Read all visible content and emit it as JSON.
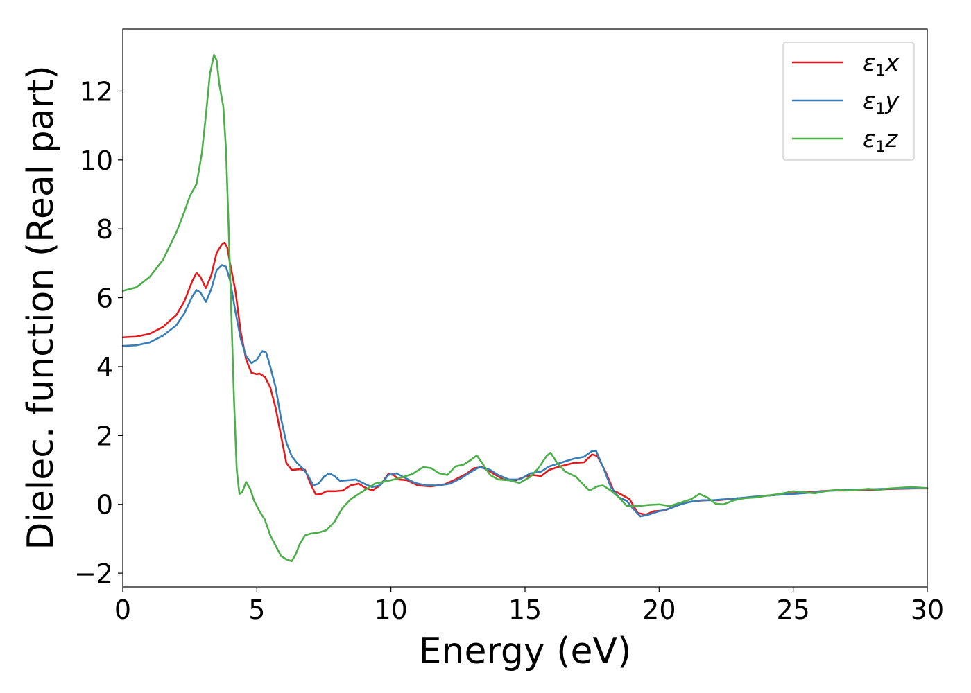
{
  "chart_data": {
    "type": "line",
    "title": "",
    "xlabel": "Energy (eV)",
    "ylabel": "Dielec. function (Real part)",
    "xlim": [
      0,
      30
    ],
    "ylim": [
      -2.4,
      13.8
    ],
    "xticks": [
      0,
      5,
      10,
      15,
      20,
      25,
      30
    ],
    "xtick_labels": [
      "0",
      "5",
      "10",
      "15",
      "20",
      "25",
      "30"
    ],
    "yticks": [
      -2,
      0,
      2,
      4,
      6,
      8,
      10,
      12
    ],
    "ytick_labels": [
      "−2",
      "0",
      "2",
      "4",
      "6",
      "8",
      "10",
      "12"
    ],
    "grid": false,
    "legend_position": "top-right",
    "series": [
      {
        "name": "ε₁x",
        "legend_main": "ε",
        "legend_sub": "1",
        "legend_suffix": "x",
        "color": "#e41a1c",
        "points": [
          [
            0,
            4.85
          ],
          [
            0.5,
            4.87
          ],
          [
            1.0,
            4.95
          ],
          [
            1.5,
            5.15
          ],
          [
            2.0,
            5.5
          ],
          [
            2.3,
            5.9
          ],
          [
            2.6,
            6.5
          ],
          [
            2.75,
            6.72
          ],
          [
            2.9,
            6.6
          ],
          [
            3.1,
            6.28
          ],
          [
            3.3,
            6.65
          ],
          [
            3.5,
            7.3
          ],
          [
            3.7,
            7.55
          ],
          [
            3.8,
            7.6
          ],
          [
            3.9,
            7.45
          ],
          [
            4.0,
            7.0
          ],
          [
            4.2,
            6.2
          ],
          [
            4.4,
            5.0
          ],
          [
            4.6,
            4.2
          ],
          [
            4.8,
            3.82
          ],
          [
            5.0,
            3.78
          ],
          [
            5.1,
            3.8
          ],
          [
            5.3,
            3.7
          ],
          [
            5.5,
            3.4
          ],
          [
            5.7,
            2.8
          ],
          [
            5.9,
            2.0
          ],
          [
            6.1,
            1.2
          ],
          [
            6.3,
            1.0
          ],
          [
            6.6,
            1.02
          ],
          [
            6.8,
            1.0
          ],
          [
            7.0,
            0.6
          ],
          [
            7.2,
            0.28
          ],
          [
            7.4,
            0.3
          ],
          [
            7.6,
            0.38
          ],
          [
            7.9,
            0.38
          ],
          [
            8.2,
            0.4
          ],
          [
            8.5,
            0.55
          ],
          [
            8.8,
            0.6
          ],
          [
            9.0,
            0.5
          ],
          [
            9.3,
            0.4
          ],
          [
            9.6,
            0.55
          ],
          [
            9.9,
            0.88
          ],
          [
            10.1,
            0.85
          ],
          [
            10.3,
            0.72
          ],
          [
            10.6,
            0.7
          ],
          [
            11.0,
            0.55
          ],
          [
            11.5,
            0.52
          ],
          [
            12.0,
            0.58
          ],
          [
            12.4,
            0.72
          ],
          [
            12.8,
            0.88
          ],
          [
            13.1,
            1.05
          ],
          [
            13.4,
            1.08
          ],
          [
            13.8,
            0.9
          ],
          [
            14.2,
            0.72
          ],
          [
            14.6,
            0.68
          ],
          [
            15.0,
            0.8
          ],
          [
            15.3,
            0.85
          ],
          [
            15.6,
            0.82
          ],
          [
            15.9,
            1.0
          ],
          [
            16.3,
            1.1
          ],
          [
            16.8,
            1.2
          ],
          [
            17.2,
            1.22
          ],
          [
            17.5,
            1.45
          ],
          [
            17.7,
            1.4
          ],
          [
            18.0,
            0.95
          ],
          [
            18.3,
            0.4
          ],
          [
            18.6,
            0.28
          ],
          [
            18.9,
            0.15
          ],
          [
            19.2,
            -0.25
          ],
          [
            19.5,
            -0.3
          ],
          [
            19.8,
            -0.2
          ],
          [
            20.2,
            -0.18
          ],
          [
            20.6,
            -0.05
          ],
          [
            21.0,
            0.05
          ],
          [
            21.4,
            0.1
          ],
          [
            21.8,
            0.12
          ],
          [
            22.2,
            0.12
          ],
          [
            22.6,
            0.15
          ],
          [
            23.0,
            0.18
          ],
          [
            23.5,
            0.2
          ],
          [
            24.0,
            0.25
          ],
          [
            24.5,
            0.28
          ],
          [
            25.0,
            0.32
          ],
          [
            25.5,
            0.35
          ],
          [
            26.0,
            0.38
          ],
          [
            26.5,
            0.4
          ],
          [
            27.0,
            0.4
          ],
          [
            27.5,
            0.42
          ],
          [
            28.0,
            0.42
          ],
          [
            28.5,
            0.44
          ],
          [
            29.0,
            0.45
          ],
          [
            29.5,
            0.46
          ],
          [
            30.0,
            0.46
          ]
        ]
      },
      {
        "name": "ε₁y",
        "legend_main": "ε",
        "legend_sub": "1",
        "legend_suffix": "y",
        "color": "#377eb8",
        "points": [
          [
            0,
            4.6
          ],
          [
            0.5,
            4.62
          ],
          [
            1.0,
            4.7
          ],
          [
            1.5,
            4.9
          ],
          [
            2.0,
            5.2
          ],
          [
            2.3,
            5.55
          ],
          [
            2.6,
            6.05
          ],
          [
            2.75,
            6.22
          ],
          [
            2.9,
            6.15
          ],
          [
            3.1,
            5.88
          ],
          [
            3.3,
            6.25
          ],
          [
            3.5,
            6.8
          ],
          [
            3.7,
            6.95
          ],
          [
            3.85,
            6.9
          ],
          [
            4.0,
            6.5
          ],
          [
            4.2,
            5.6
          ],
          [
            4.4,
            4.8
          ],
          [
            4.6,
            4.3
          ],
          [
            4.8,
            4.1
          ],
          [
            5.0,
            4.2
          ],
          [
            5.2,
            4.45
          ],
          [
            5.35,
            4.4
          ],
          [
            5.5,
            4.0
          ],
          [
            5.7,
            3.4
          ],
          [
            5.9,
            2.5
          ],
          [
            6.1,
            1.8
          ],
          [
            6.3,
            1.4
          ],
          [
            6.5,
            1.2
          ],
          [
            6.7,
            1.05
          ],
          [
            6.9,
            0.85
          ],
          [
            7.1,
            0.55
          ],
          [
            7.3,
            0.6
          ],
          [
            7.5,
            0.8
          ],
          [
            7.7,
            0.9
          ],
          [
            7.9,
            0.82
          ],
          [
            8.1,
            0.68
          ],
          [
            8.4,
            0.7
          ],
          [
            8.7,
            0.72
          ],
          [
            9.0,
            0.6
          ],
          [
            9.3,
            0.5
          ],
          [
            9.6,
            0.55
          ],
          [
            9.9,
            0.85
          ],
          [
            10.2,
            0.9
          ],
          [
            10.5,
            0.78
          ],
          [
            10.9,
            0.62
          ],
          [
            11.3,
            0.55
          ],
          [
            11.8,
            0.55
          ],
          [
            12.2,
            0.6
          ],
          [
            12.6,
            0.75
          ],
          [
            13.0,
            0.95
          ],
          [
            13.3,
            1.08
          ],
          [
            13.7,
            1.0
          ],
          [
            14.0,
            0.85
          ],
          [
            14.4,
            0.72
          ],
          [
            14.8,
            0.72
          ],
          [
            15.2,
            0.9
          ],
          [
            15.6,
            0.95
          ],
          [
            15.9,
            1.1
          ],
          [
            16.3,
            1.2
          ],
          [
            16.8,
            1.32
          ],
          [
            17.2,
            1.38
          ],
          [
            17.5,
            1.55
          ],
          [
            17.65,
            1.55
          ],
          [
            17.9,
            1.1
          ],
          [
            18.2,
            0.5
          ],
          [
            18.5,
            0.2
          ],
          [
            18.8,
            0.1
          ],
          [
            19.0,
            -0.1
          ],
          [
            19.3,
            -0.35
          ],
          [
            19.6,
            -0.3
          ],
          [
            20.0,
            -0.2
          ],
          [
            20.4,
            -0.12
          ],
          [
            20.8,
            0.0
          ],
          [
            21.2,
            0.08
          ],
          [
            21.6,
            0.12
          ],
          [
            22.0,
            0.12
          ],
          [
            22.5,
            0.15
          ],
          [
            23.0,
            0.18
          ],
          [
            23.5,
            0.22
          ],
          [
            24.0,
            0.25
          ],
          [
            24.5,
            0.28
          ],
          [
            25.0,
            0.3
          ],
          [
            25.5,
            0.33
          ],
          [
            26.0,
            0.37
          ],
          [
            26.5,
            0.4
          ],
          [
            27.0,
            0.42
          ],
          [
            27.5,
            0.43
          ],
          [
            28.0,
            0.44
          ],
          [
            28.5,
            0.45
          ],
          [
            29.0,
            0.46
          ],
          [
            29.5,
            0.47
          ],
          [
            30.0,
            0.47
          ]
        ]
      },
      {
        "name": "ε₁z",
        "legend_main": "ε",
        "legend_sub": "1",
        "legend_suffix": "z",
        "color": "#4daf4a",
        "points": [
          [
            0,
            6.2
          ],
          [
            0.5,
            6.3
          ],
          [
            1.0,
            6.6
          ],
          [
            1.5,
            7.1
          ],
          [
            2.0,
            7.9
          ],
          [
            2.3,
            8.5
          ],
          [
            2.5,
            8.95
          ],
          [
            2.75,
            9.3
          ],
          [
            2.95,
            10.2
          ],
          [
            3.1,
            11.3
          ],
          [
            3.25,
            12.5
          ],
          [
            3.4,
            13.05
          ],
          [
            3.5,
            12.9
          ],
          [
            3.6,
            12.2
          ],
          [
            3.75,
            11.55
          ],
          [
            3.85,
            10.3
          ],
          [
            3.95,
            8.0
          ],
          [
            4.05,
            5.5
          ],
          [
            4.15,
            3.0
          ],
          [
            4.25,
            1.0
          ],
          [
            4.35,
            0.3
          ],
          [
            4.45,
            0.35
          ],
          [
            4.6,
            0.65
          ],
          [
            4.75,
            0.45
          ],
          [
            4.9,
            0.1
          ],
          [
            5.1,
            -0.2
          ],
          [
            5.3,
            -0.45
          ],
          [
            5.5,
            -0.9
          ],
          [
            5.7,
            -1.2
          ],
          [
            5.9,
            -1.5
          ],
          [
            6.1,
            -1.6
          ],
          [
            6.3,
            -1.65
          ],
          [
            6.45,
            -1.45
          ],
          [
            6.6,
            -1.15
          ],
          [
            6.8,
            -0.9
          ],
          [
            7.0,
            -0.85
          ],
          [
            7.3,
            -0.82
          ],
          [
            7.6,
            -0.75
          ],
          [
            7.9,
            -0.5
          ],
          [
            8.2,
            -0.1
          ],
          [
            8.5,
            0.15
          ],
          [
            8.8,
            0.3
          ],
          [
            9.1,
            0.45
          ],
          [
            9.4,
            0.6
          ],
          [
            9.7,
            0.65
          ],
          [
            10.0,
            0.7
          ],
          [
            10.4,
            0.78
          ],
          [
            10.8,
            0.88
          ],
          [
            11.2,
            1.08
          ],
          [
            11.5,
            1.05
          ],
          [
            11.8,
            0.9
          ],
          [
            12.1,
            0.85
          ],
          [
            12.4,
            1.1
          ],
          [
            12.7,
            1.15
          ],
          [
            13.0,
            1.3
          ],
          [
            13.2,
            1.42
          ],
          [
            13.4,
            1.2
          ],
          [
            13.7,
            0.85
          ],
          [
            14.0,
            0.72
          ],
          [
            14.4,
            0.7
          ],
          [
            14.8,
            0.62
          ],
          [
            15.2,
            0.8
          ],
          [
            15.5,
            1.05
          ],
          [
            15.8,
            1.4
          ],
          [
            15.95,
            1.5
          ],
          [
            16.2,
            1.2
          ],
          [
            16.5,
            0.95
          ],
          [
            16.9,
            0.8
          ],
          [
            17.2,
            0.55
          ],
          [
            17.4,
            0.4
          ],
          [
            17.7,
            0.52
          ],
          [
            17.9,
            0.55
          ],
          [
            18.2,
            0.4
          ],
          [
            18.5,
            0.2
          ],
          [
            18.8,
            -0.05
          ],
          [
            19.2,
            -0.05
          ],
          [
            19.6,
            -0.02
          ],
          [
            20.0,
            0.0
          ],
          [
            20.4,
            -0.05
          ],
          [
            20.8,
            0.05
          ],
          [
            21.2,
            0.15
          ],
          [
            21.5,
            0.3
          ],
          [
            21.8,
            0.2
          ],
          [
            22.1,
            0.02
          ],
          [
            22.4,
            0.0
          ],
          [
            22.8,
            0.12
          ],
          [
            23.2,
            0.18
          ],
          [
            23.6,
            0.2
          ],
          [
            24.0,
            0.25
          ],
          [
            24.5,
            0.3
          ],
          [
            25.0,
            0.38
          ],
          [
            25.4,
            0.35
          ],
          [
            25.8,
            0.32
          ],
          [
            26.2,
            0.38
          ],
          [
            26.6,
            0.42
          ],
          [
            27.0,
            0.4
          ],
          [
            27.4,
            0.42
          ],
          [
            27.8,
            0.45
          ],
          [
            28.2,
            0.42
          ],
          [
            28.6,
            0.46
          ],
          [
            29.0,
            0.48
          ],
          [
            29.4,
            0.5
          ],
          [
            29.8,
            0.48
          ],
          [
            30.0,
            0.47
          ]
        ]
      }
    ]
  }
}
